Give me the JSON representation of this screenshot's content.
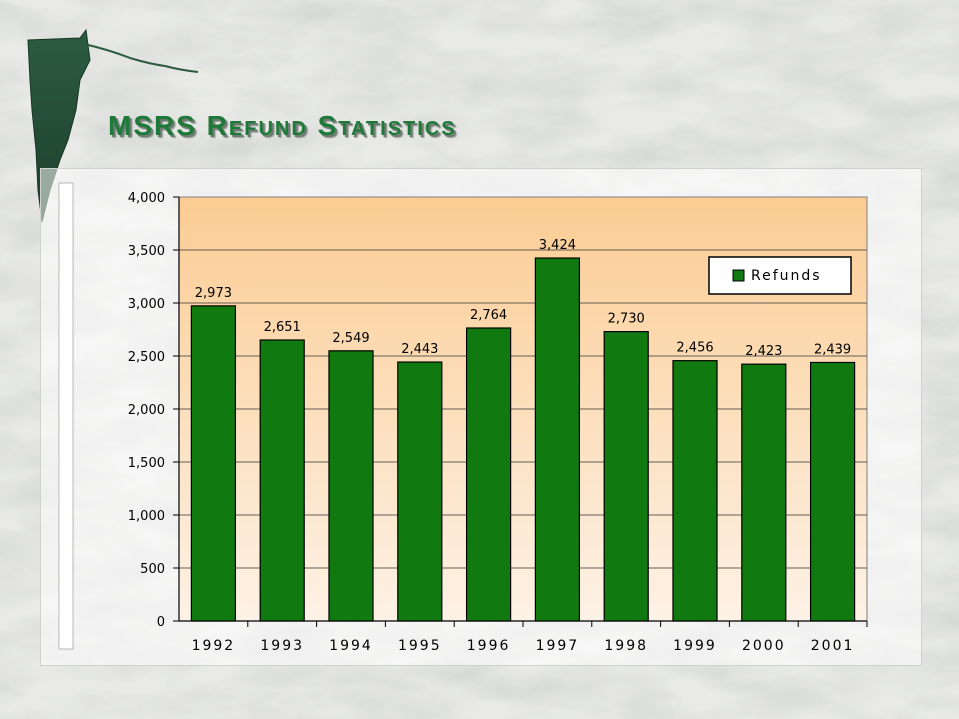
{
  "slide": {
    "title": "MSRS Refund Statistics",
    "background": "#e7e8e6",
    "title_color": "#1f7a3a"
  },
  "chart_data": {
    "type": "bar",
    "title": "",
    "xlabel": "",
    "ylabel": "",
    "categories": [
      "1992",
      "1993",
      "1994",
      "1995",
      "1996",
      "1997",
      "1998",
      "1999",
      "2000",
      "2001"
    ],
    "series": [
      {
        "name": "Refunds",
        "values": [
          2973,
          2651,
          2549,
          2443,
          2764,
          3424,
          2730,
          2456,
          2423,
          2439
        ],
        "color": "#107a10"
      }
    ],
    "data_labels": [
      "2,973",
      "2,651",
      "2,549",
      "2,443",
      "2,764",
      "3,424",
      "2,730",
      "2,456",
      "2,423",
      "2,439"
    ],
    "yticks": [
      "0",
      "500",
      "1,000",
      "1,500",
      "2,000",
      "2,500",
      "3,000",
      "3,500",
      "4,000"
    ],
    "ylim": [
      0,
      4000
    ],
    "grid": true,
    "legend": "top-right",
    "plot_gradient": [
      "#fbcc93",
      "#fdf2e6"
    ]
  }
}
